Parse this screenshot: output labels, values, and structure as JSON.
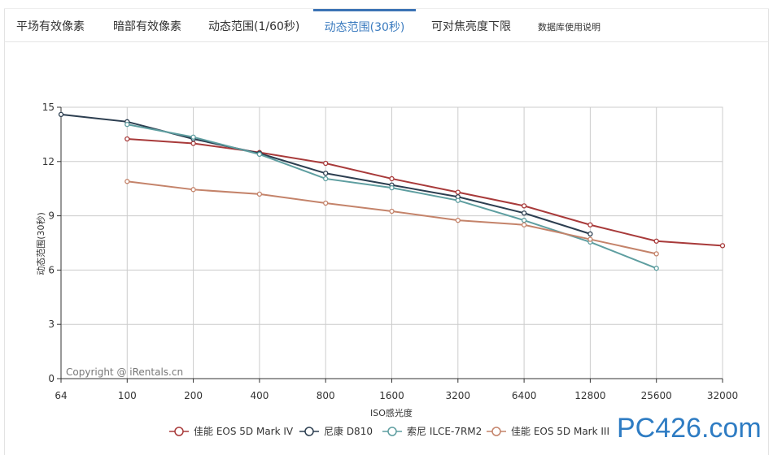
{
  "tabs": [
    {
      "label": "平场有效像素",
      "active": false
    },
    {
      "label": "暗部有效像素",
      "active": false
    },
    {
      "label": "动态范围(1/60秒)",
      "active": false
    },
    {
      "label": "动态范围(30秒)",
      "active": true
    },
    {
      "label": "可对焦亮度下限",
      "active": false
    },
    {
      "label": "数据库使用说明",
      "active": false
    }
  ],
  "copyright": "Copyright @ iRentals.cn",
  "watermark": "PC426.com",
  "chart_data": {
    "type": "line",
    "x": [
      64,
      100,
      200,
      400,
      800,
      1600,
      3200,
      6400,
      12800,
      25600,
      32000
    ],
    "xlabel": "ISO感光度",
    "ylabel": "动态范围(30秒)",
    "ylim": [
      0,
      15
    ],
    "yticks": [
      0,
      3,
      6,
      9,
      12,
      15
    ],
    "grid": true,
    "legend": "bottom",
    "series": [
      {
        "name": "佳能 EOS 5D Mark IV",
        "color": "#a83a3a",
        "values": [
          null,
          13.25,
          13.0,
          12.5,
          11.9,
          11.05,
          10.3,
          9.55,
          8.5,
          7.6,
          7.35
        ]
      },
      {
        "name": "尼康 D810",
        "color": "#2c3e50",
        "values": [
          14.6,
          14.2,
          13.25,
          12.45,
          11.35,
          10.7,
          10.05,
          9.15,
          8.0,
          null,
          null
        ]
      },
      {
        "name": "索尼 ILCE-7RM2",
        "color": "#5e9ea0",
        "values": [
          null,
          14.05,
          13.35,
          12.4,
          11.05,
          10.55,
          9.85,
          8.75,
          7.55,
          6.1,
          null
        ]
      },
      {
        "name": "佳能 EOS 5D Mark III",
        "color": "#c4836a",
        "values": [
          null,
          10.9,
          10.45,
          10.2,
          9.7,
          9.25,
          8.75,
          8.5,
          7.7,
          6.9,
          null
        ]
      }
    ]
  }
}
